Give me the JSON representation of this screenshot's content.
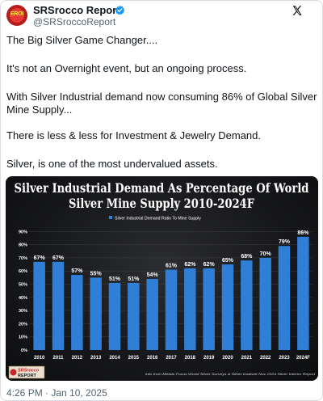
{
  "post": {
    "author_name": "SRSrocco Report",
    "author_handle": "@SRSroccoReport",
    "avatar_text": "EROI",
    "paragraphs": [
      "The Big Silver Game Changer....",
      "It's not an Overnight event, but an ongoing process.",
      "With Silver Industrial demand now consuming 86% of Global Silver Mine Supply...",
      "There is less & less for Investment & Jewelry Demand.",
      "Silver, is one of the most undervalued assets."
    ],
    "timestamp": "4:26 PM · Jan 10, 2025"
  },
  "colors": {
    "bar": "#2f7fd6",
    "verified": "#1d9bf0",
    "logo_red": "#c62828"
  },
  "chart_data": {
    "type": "bar",
    "title": "Silver Industrial Demand As Percentage Of World Silver Mine Supply 2010-2024F",
    "legend": "Silver Industrial Demand Ratio To Mine Supply",
    "categories": [
      "2010",
      "2011",
      "2012",
      "2013",
      "2014",
      "2015",
      "2016",
      "2017",
      "2018",
      "2019",
      "2020",
      "2021",
      "2022",
      "2023",
      "2024F"
    ],
    "values": [
      67,
      67,
      57,
      55,
      51,
      51,
      54,
      61,
      62,
      62,
      65,
      68,
      70,
      79,
      86
    ],
    "value_labels": [
      "67%",
      "67%",
      "57%",
      "55%",
      "51%",
      "51%",
      "54%",
      "61%",
      "62%",
      "62%",
      "65%",
      "68%",
      "70%",
      "79%",
      "86%"
    ],
    "ylim": [
      0,
      100
    ],
    "yticks": [
      "0%",
      "10%",
      "20%",
      "30%",
      "40%",
      "50%",
      "60%",
      "70%",
      "80%",
      "90%"
    ],
    "source": "info from Metals Focus World Silver Surveys & Silver Institute Nov 2024 Silver Interim Report",
    "logo_line1": "SRSrocco",
    "logo_line2": "REPORT"
  }
}
